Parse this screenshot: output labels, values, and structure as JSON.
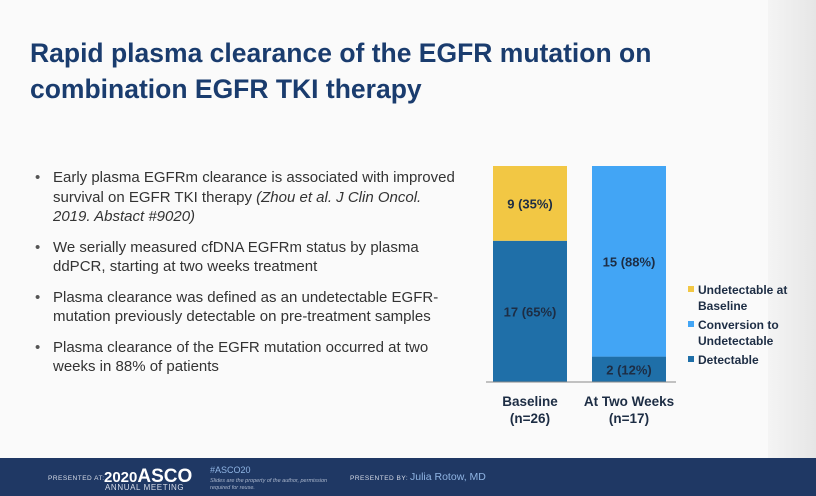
{
  "slide": {
    "title": "Rapid plasma clearance of the EGFR mutation on combination EGFR TKI therapy",
    "bullets": [
      {
        "text": "Early plasma EGFRm clearance is associated with improved survival on EGFR TKI therapy ",
        "citation": "(Zhou et al. J Clin Oncol. 2019. Abstact #9020)"
      },
      {
        "text": "We serially measured cfDNA EGFRm status by plasma ddPCR, starting at two weeks treatment",
        "citation": ""
      },
      {
        "text": "Plasma clearance was defined as an undetectable EGFR-mutation previously detectable on pre-treatment samples",
        "citation": ""
      },
      {
        "text": "Plasma clearance of the EGFR mutation occurred at two weeks in 88% of patients",
        "citation": ""
      }
    ]
  },
  "chart_data": {
    "type": "bar",
    "stacked": true,
    "categories": [
      "Baseline (n=26)",
      "At Two Weeks (n=17)"
    ],
    "category_lines": [
      [
        "Baseline",
        "(n=26)"
      ],
      [
        "At Two Weeks",
        "(n=17)"
      ]
    ],
    "series": [
      {
        "name": "Detectable",
        "color": "#1f6fa8",
        "values": [
          17,
          2
        ],
        "labels": [
          "17 (65%)",
          "2 (12%)"
        ]
      },
      {
        "name": "Conversion to Undetectable",
        "color": "#42a5f5",
        "values": [
          0,
          15
        ],
        "labels": [
          "",
          "15 (88%)"
        ]
      },
      {
        "name": "Undetectable at Baseline",
        "color": "#f2c744",
        "values": [
          9,
          0
        ],
        "labels": [
          "9 (35%)",
          ""
        ]
      }
    ],
    "legend": [
      {
        "lines": [
          "Undetectable at",
          "Baseline"
        ],
        "color": "#f2c744"
      },
      {
        "lines": [
          "Conversion to",
          "Undetectable"
        ],
        "color": "#42a5f5"
      },
      {
        "lines": [
          "Detectable"
        ],
        "color": "#1f6fa8"
      }
    ],
    "ylim": [
      0,
      100
    ],
    "unit": "percent",
    "grid": false,
    "legend_position": "right"
  },
  "footer": {
    "presented_at": "PRESENTED AT:",
    "year": "2020",
    "asco": "ASCO",
    "annual_meeting": "ANNUAL MEETING",
    "hashtag": "#ASCO20",
    "disclaimer": "Slides are the property of the author, permission required for reuse.",
    "presented_by": "PRESENTED BY:",
    "presenter": "Julia Rotow, MD"
  }
}
